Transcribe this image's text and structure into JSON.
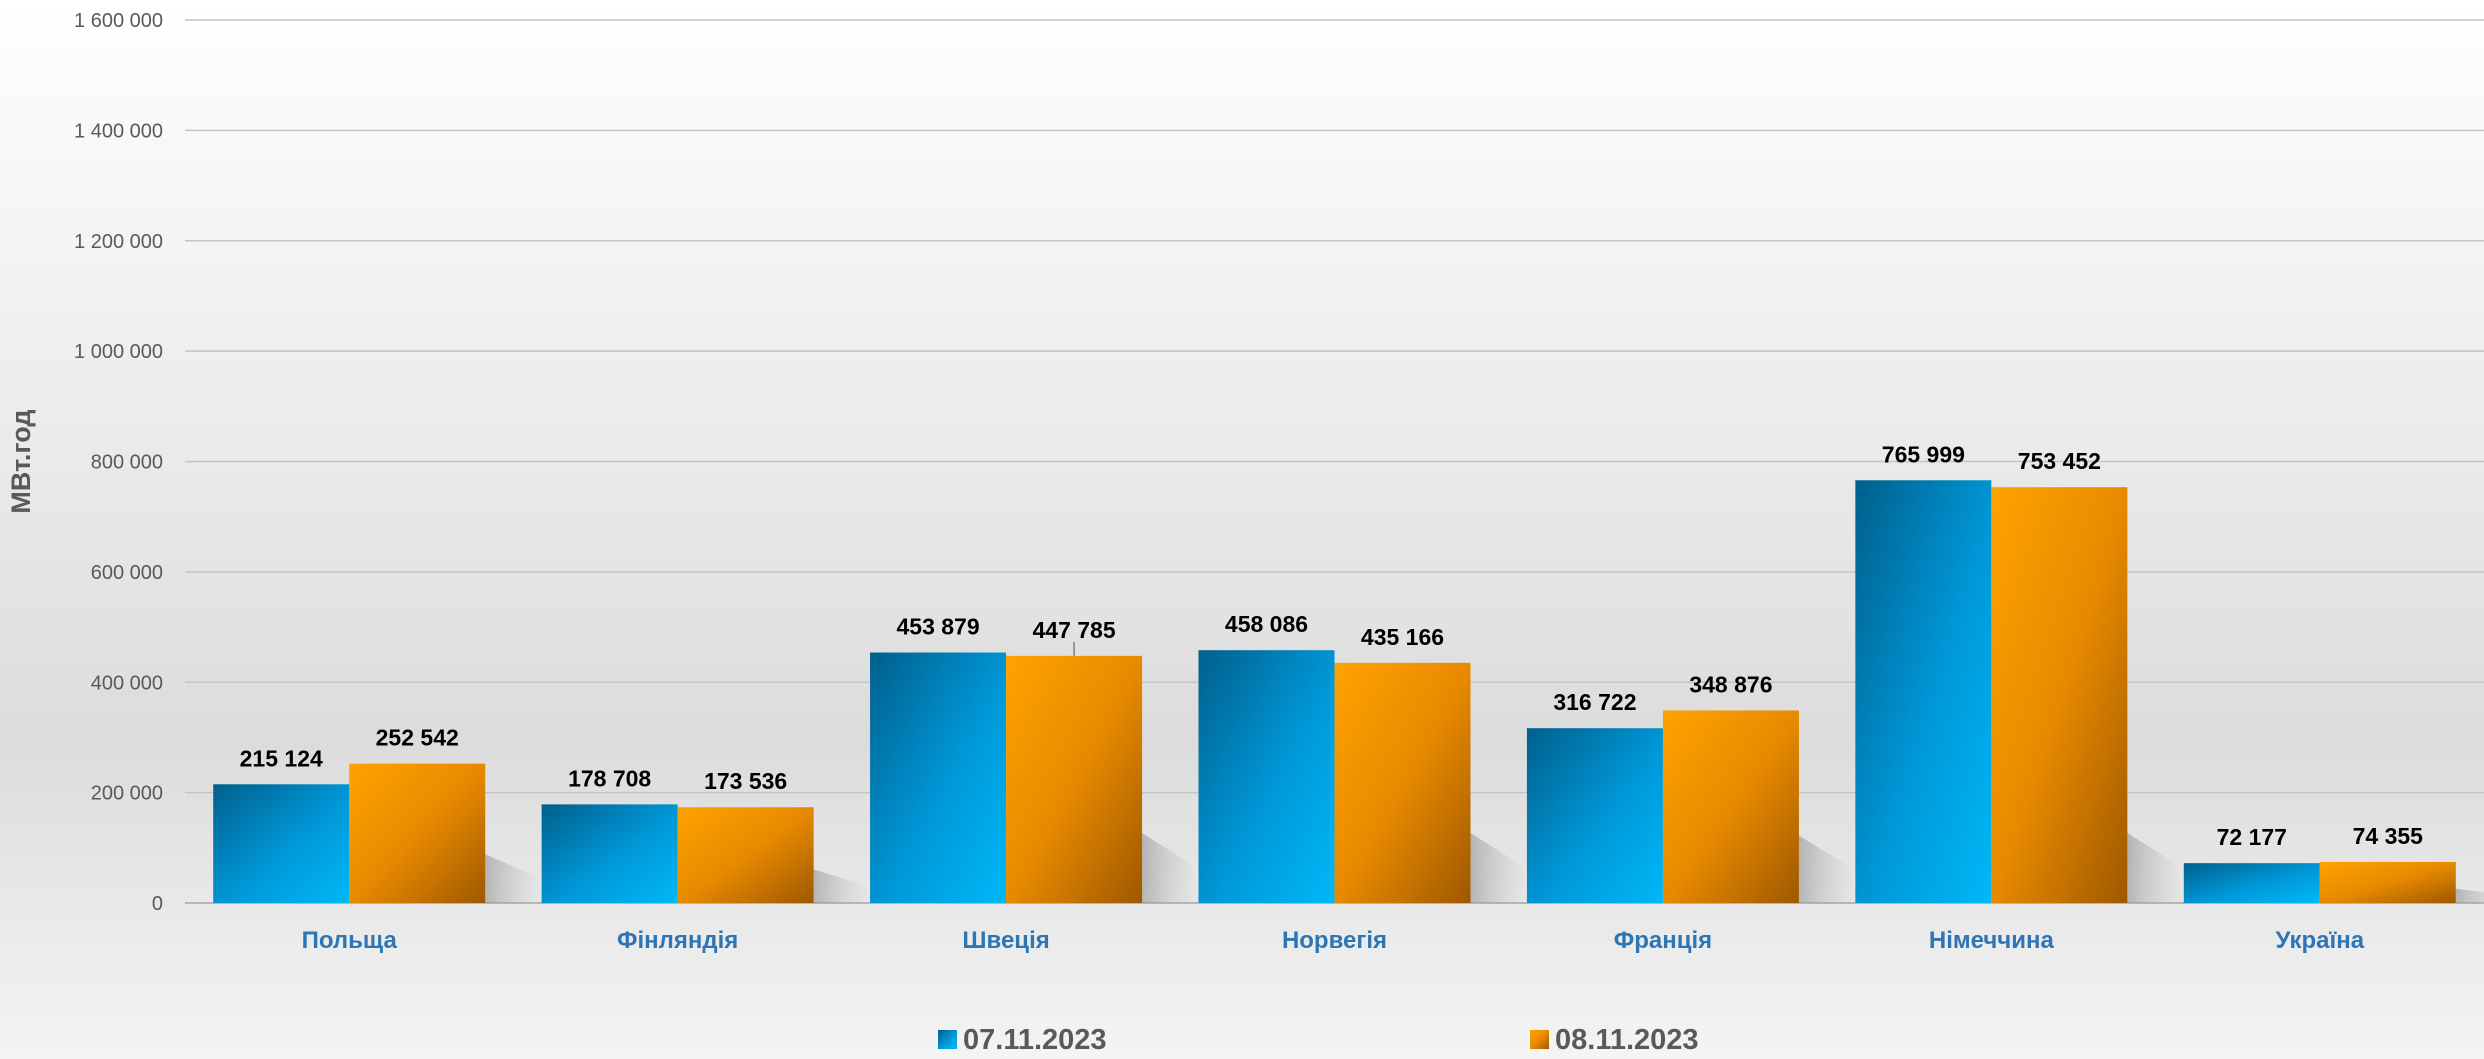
{
  "chart_data": {
    "type": "bar",
    "ylabel": "МВт.год",
    "xlabel": "",
    "ylim": [
      0,
      1600000
    ],
    "yticks": [
      0,
      200000,
      400000,
      600000,
      800000,
      1000000,
      1200000,
      1400000,
      1600000
    ],
    "ytick_labels": [
      "0",
      "200 000",
      "400 000",
      "600 000",
      "800 000",
      "1 000 000",
      "1 200 000",
      "1 400 000",
      "1 600 000"
    ],
    "grid": true,
    "legend_position": "bottom",
    "categories": [
      "Польща",
      "Фінляндія",
      "Швеція",
      "Норвегія",
      "Франція",
      "Німеччина",
      "Україна"
    ],
    "series": [
      {
        "name": "07.11.2023",
        "color": "#00b0f0",
        "values": [
          215124,
          178708,
          453879,
          458086,
          316722,
          765999,
          72177
        ],
        "labels": [
          "215 124",
          "178 708",
          "453 879",
          "458 086",
          "316 722",
          "765 999",
          "72 177"
        ]
      },
      {
        "name": "08.11.2023",
        "color": "#ffa000",
        "values": [
          252542,
          173536,
          447785,
          435166,
          348876,
          753452,
          74355
        ],
        "labels": [
          "252 542",
          "173 536",
          "447 785",
          "435 166",
          "348 876",
          "753 452",
          "74 355"
        ]
      }
    ]
  }
}
